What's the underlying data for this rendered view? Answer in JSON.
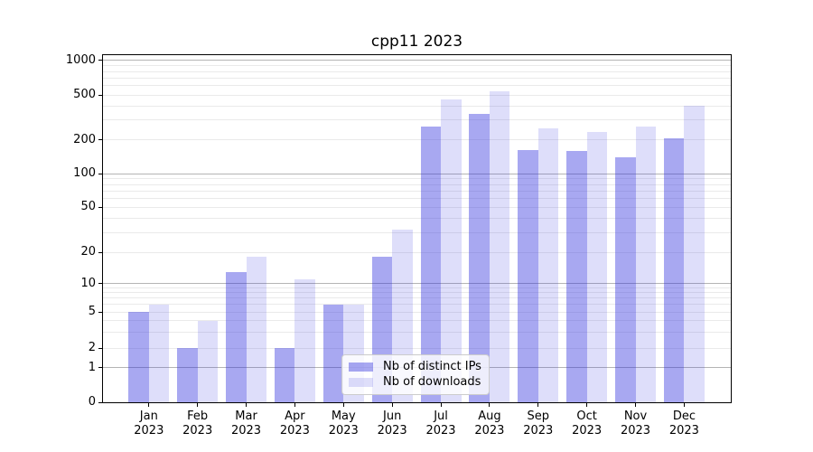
{
  "title": "cpp11 2023",
  "chart_data": {
    "type": "bar",
    "title": "cpp11 2023",
    "categories": [
      "Jan 2023",
      "Feb 2023",
      "Mar 2023",
      "Apr 2023",
      "May 2023",
      "Jun 2023",
      "Jul 2023",
      "Aug 2023",
      "Sep 2023",
      "Oct 2023",
      "Nov 2023",
      "Dec 2023"
    ],
    "x_tick_months": [
      "Jan",
      "Feb",
      "Mar",
      "Apr",
      "May",
      "Jun",
      "Jul",
      "Aug",
      "Sep",
      "Oct",
      "Nov",
      "Dec"
    ],
    "x_tick_year": "2023",
    "series": [
      {
        "name": "Nb of distinct IPs",
        "color": "rgba(47,47,222,0.42)",
        "values": [
          5,
          2,
          13,
          2,
          6,
          18,
          265,
          340,
          164,
          160,
          139,
          207
        ]
      },
      {
        "name": "Nb of downloads",
        "color": "rgba(47,47,222,0.16)",
        "values": [
          6,
          4,
          18,
          11,
          6,
          32,
          460,
          540,
          251,
          234,
          263,
          404
        ]
      }
    ],
    "y_tick_values": [
      0,
      1,
      2,
      5,
      10,
      20,
      50,
      100,
      200,
      500,
      1000
    ],
    "y_tick_labels": [
      "0",
      "1",
      "2",
      "5",
      "10",
      "20",
      "50",
      "100",
      "200",
      "500",
      "1000"
    ],
    "y_minor_gridline_values": [
      3,
      4,
      6,
      7,
      8,
      9,
      30,
      40,
      60,
      70,
      80,
      90,
      300,
      400,
      600,
      700,
      800,
      900
    ],
    "scale": "log-like (labeled 0,1,2,5,10,20,50,100,200,500,1000)",
    "ylim": [
      0,
      1150
    ],
    "grid": true,
    "legend_position": "lower center inside plot",
    "colors": {
      "bar_dark_on_white": "#a6a6f0",
      "bar_light_on_white": "#dcdcf8",
      "major_grid": "#b4b4b4",
      "minor_grid": "#eaeaea",
      "spine": "#000000",
      "text": "#000000",
      "legend_border": "#cccccc",
      "legend_bg": "rgba(255,255,255,0.8)"
    }
  },
  "legend": {
    "items": [
      {
        "label": "Nb of distinct IPs"
      },
      {
        "label": "Nb of downloads"
      }
    ]
  }
}
